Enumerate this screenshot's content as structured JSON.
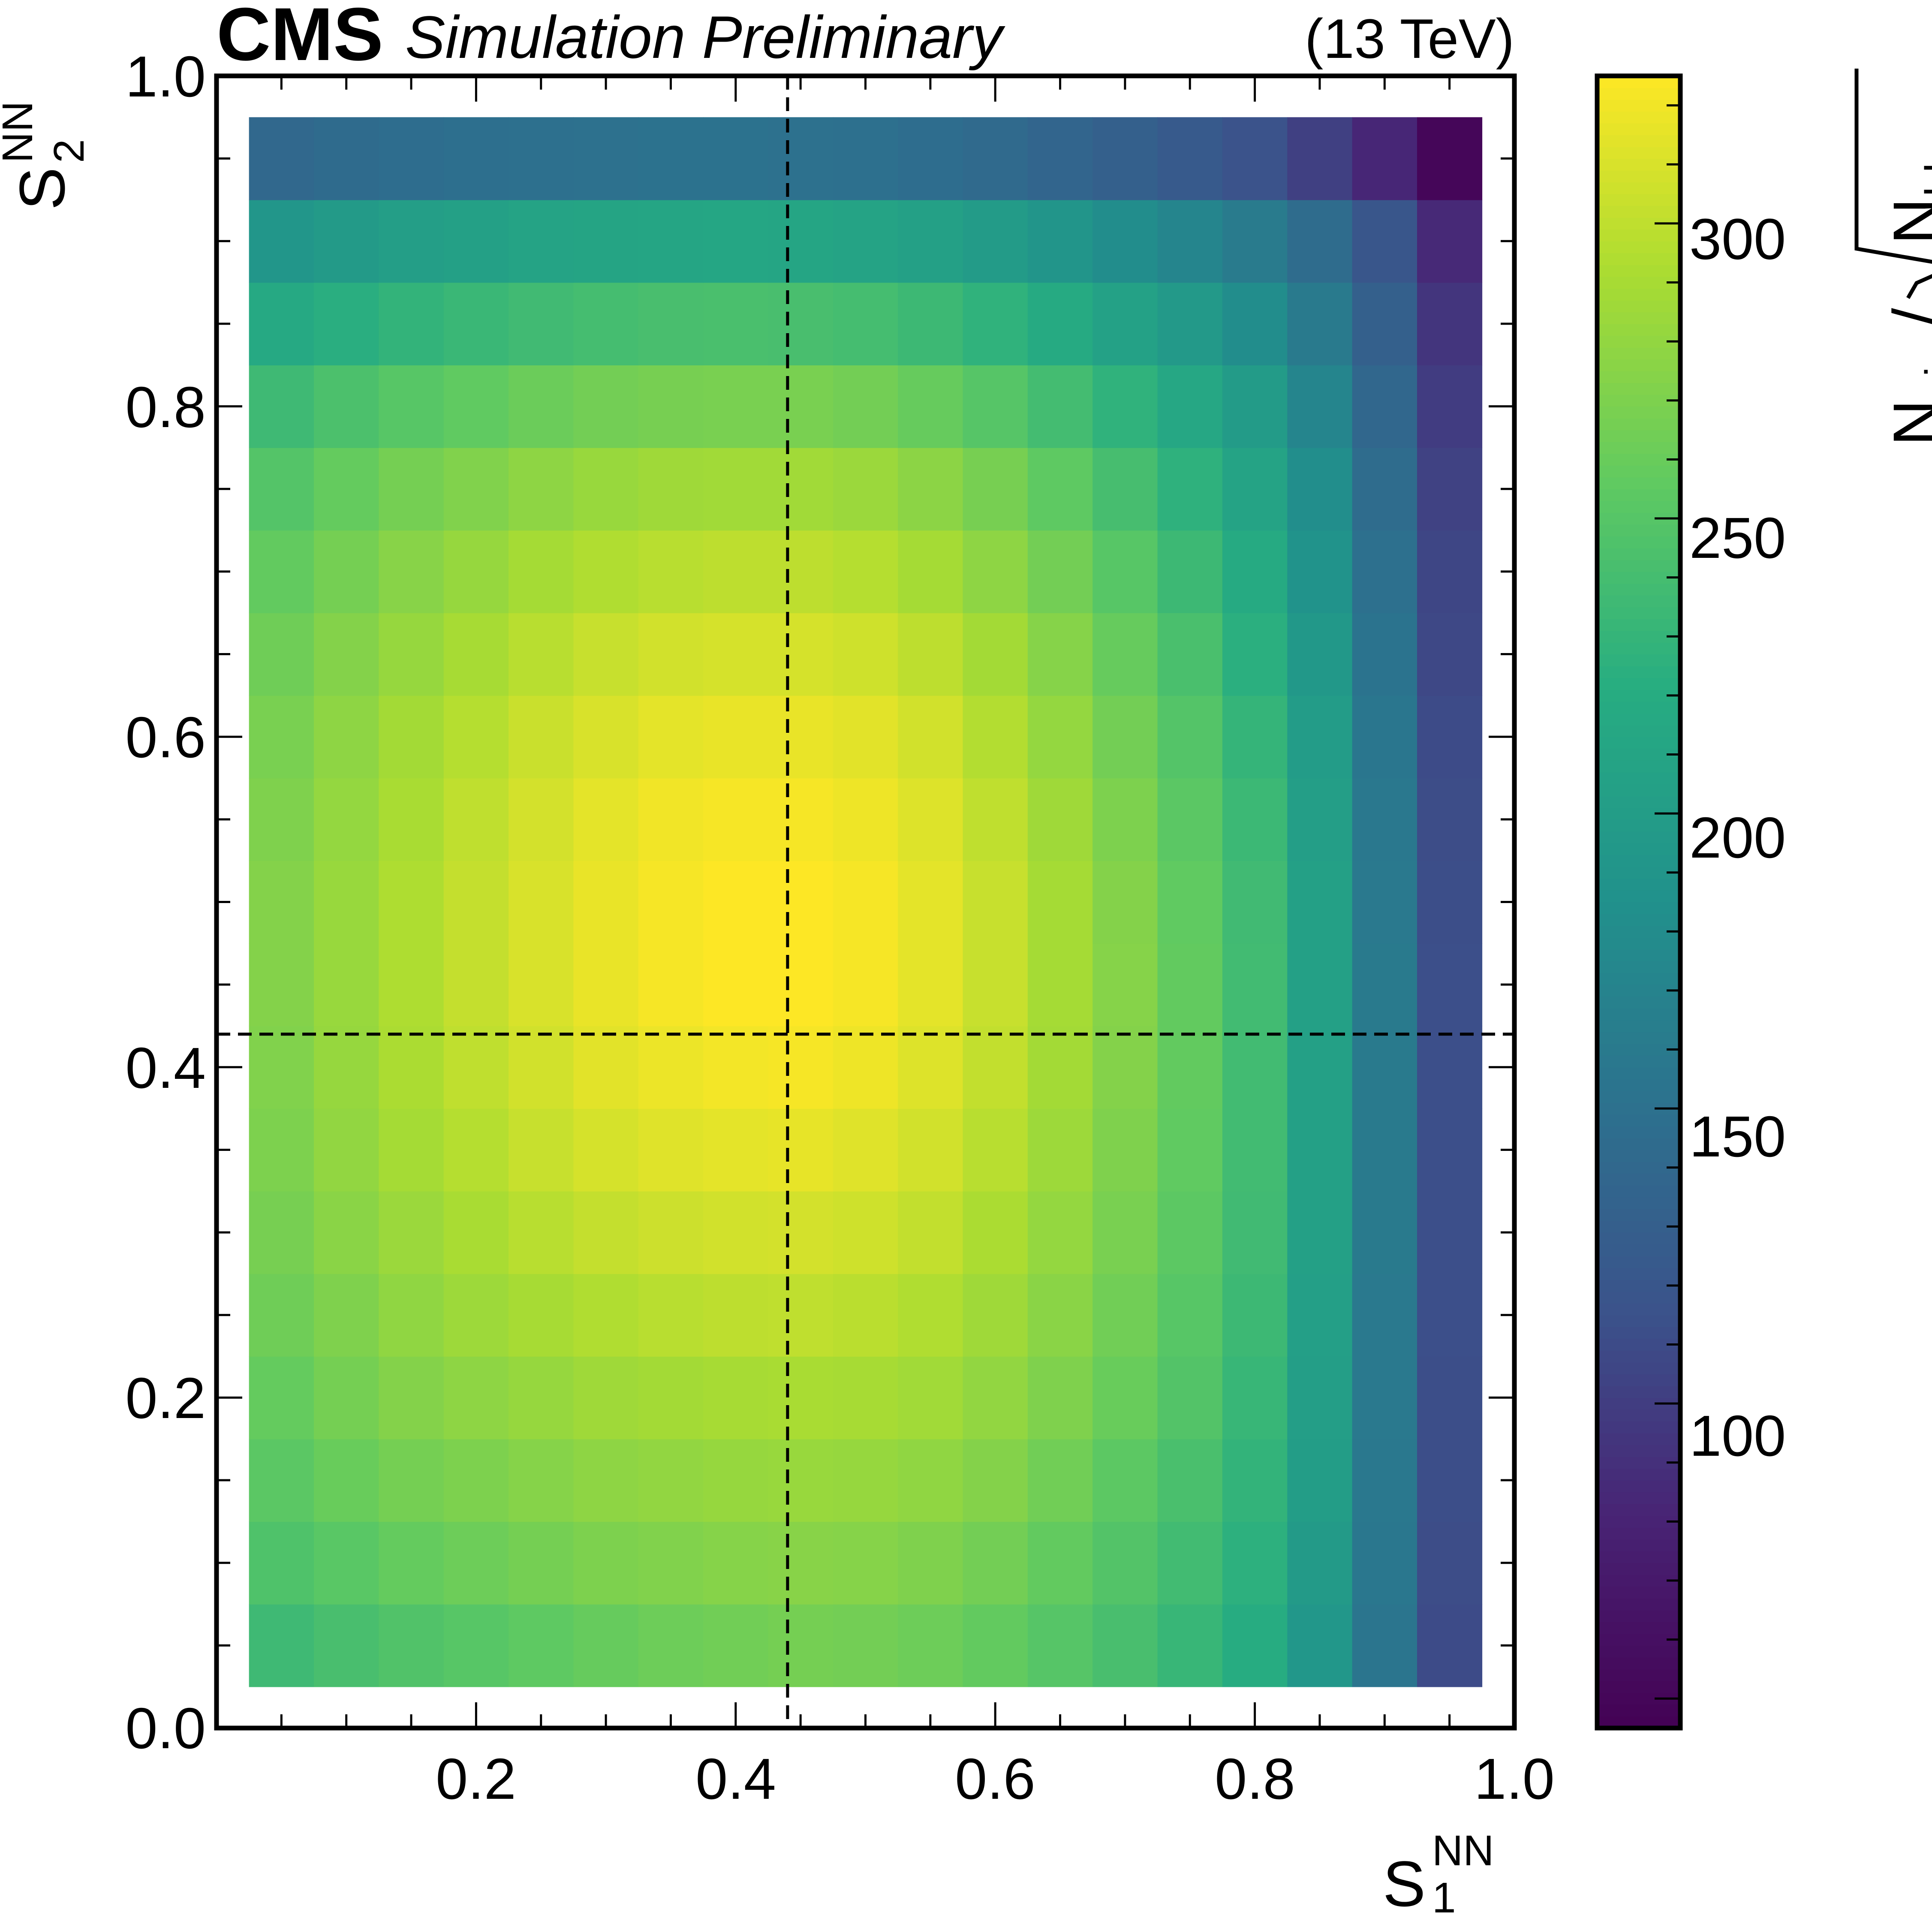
{
  "header": {
    "experiment": "CMS",
    "status": "Simulation Preliminary",
    "energy": "(13 TeV)"
  },
  "chart_data": {
    "type": "heatmap",
    "title": "",
    "xlabel": "S",
    "xlabel_sub": "1",
    "xlabel_sup": "NN",
    "ylabel": "S",
    "ylabel_sub": "2",
    "ylabel_sup": "NN",
    "colorbar_label": {
      "main": "N",
      "main_sub": "sig",
      "slash": "/",
      "denominator": "N",
      "denominator_sub": "bkg"
    },
    "xlim": [
      0.0,
      1.0
    ],
    "ylim": [
      0.0,
      1.0
    ],
    "zlim": [
      45,
      325
    ],
    "x_ticks": [
      "0.2",
      "0.4",
      "0.6",
      "0.8",
      "1.0"
    ],
    "y_ticks": [
      "0.0",
      "0.2",
      "0.4",
      "0.6",
      "0.8",
      "1.0"
    ],
    "colorbar_ticks": [
      "100",
      "150",
      "200",
      "250",
      "300"
    ],
    "x_centers": [
      0.05,
      0.1,
      0.15,
      0.2,
      0.25,
      0.3,
      0.35,
      0.4,
      0.45,
      0.5,
      0.55,
      0.6,
      0.65,
      0.7,
      0.75,
      0.8,
      0.85,
      0.9,
      0.95
    ],
    "y_centers": [
      0.05,
      0.1,
      0.15,
      0.2,
      0.25,
      0.3,
      0.35,
      0.4,
      0.45,
      0.5,
      0.55,
      0.6,
      0.65,
      0.7,
      0.75,
      0.8,
      0.85,
      0.9,
      0.95
    ],
    "bin_width": 0.05,
    "values": [
      [
        236,
        242,
        247,
        251,
        255,
        259,
        262,
        264,
        266,
        265,
        262,
        257,
        250,
        242,
        232,
        220,
        193,
        155,
        110
      ],
      [
        246,
        252,
        258,
        262,
        266,
        270,
        272,
        274,
        275,
        274,
        271,
        265,
        257,
        248,
        238,
        225,
        197,
        157,
        111
      ],
      [
        253,
        260,
        266,
        270,
        274,
        278,
        280,
        282,
        283,
        282,
        279,
        273,
        264,
        254,
        243,
        229,
        200,
        158,
        112
      ],
      [
        258,
        266,
        273,
        278,
        282,
        286,
        288,
        290,
        291,
        290,
        287,
        280,
        271,
        260,
        248,
        232,
        202,
        159,
        112
      ],
      [
        263,
        271,
        279,
        285,
        290,
        294,
        297,
        299,
        300,
        298,
        294,
        286,
        276,
        264,
        251,
        235,
        203,
        159,
        113
      ],
      [
        267,
        276,
        284,
        291,
        297,
        302,
        305,
        307,
        308,
        306,
        301,
        292,
        281,
        268,
        254,
        237,
        204,
        160,
        113
      ],
      [
        270,
        280,
        289,
        296,
        303,
        309,
        313,
        315,
        316,
        313,
        307,
        297,
        285,
        271,
        256,
        238,
        205,
        160,
        113
      ],
      [
        272,
        282,
        292,
        300,
        307,
        314,
        318,
        321,
        322,
        319,
        312,
        301,
        288,
        273,
        257,
        238,
        205,
        160,
        113
      ],
      [
        273,
        283,
        293,
        302,
        310,
        317,
        322,
        325,
        325,
        322,
        315,
        303,
        289,
        274,
        257,
        238,
        205,
        160,
        113
      ],
      [
        273,
        283,
        293,
        302,
        310,
        317,
        322,
        325,
        325,
        322,
        315,
        303,
        289,
        273,
        256,
        237,
        204,
        159,
        112
      ],
      [
        271,
        281,
        291,
        300,
        308,
        315,
        320,
        322,
        322,
        319,
        312,
        300,
        286,
        270,
        253,
        234,
        202,
        158,
        111
      ],
      [
        268,
        278,
        288,
        296,
        304,
        310,
        315,
        317,
        317,
        314,
        307,
        295,
        281,
        265,
        249,
        230,
        199,
        156,
        110
      ],
      [
        263,
        273,
        282,
        290,
        297,
        303,
        307,
        309,
        309,
        306,
        299,
        288,
        274,
        259,
        243,
        224,
        194,
        153,
        108
      ],
      [
        257,
        266,
        275,
        282,
        289,
        294,
        297,
        299,
        299,
        296,
        289,
        278,
        265,
        251,
        235,
        217,
        188,
        149,
        106
      ],
      [
        249,
        258,
        266,
        272,
        278,
        283,
        286,
        287,
        287,
        284,
        277,
        267,
        255,
        241,
        226,
        209,
        182,
        145,
        103
      ],
      [
        236,
        244,
        251,
        256,
        261,
        265,
        267,
        268,
        268,
        265,
        259,
        250,
        239,
        227,
        213,
        198,
        172,
        139,
        99
      ],
      [
        216,
        223,
        229,
        233,
        237,
        240,
        242,
        243,
        242,
        240,
        235,
        227,
        217,
        206,
        195,
        181,
        160,
        131,
        94
      ],
      [
        191,
        197,
        202,
        205,
        208,
        210,
        211,
        212,
        211,
        209,
        205,
        198,
        190,
        181,
        172,
        161,
        145,
        120,
        85
      ],
      [
        140,
        143,
        146,
        148,
        149,
        150,
        151,
        151,
        150,
        149,
        146,
        142,
        137,
        131,
        124,
        116,
        102,
        83,
        50
      ]
    ],
    "annotations": [
      {
        "type": "vline",
        "x": 0.44,
        "style": "dashed"
      },
      {
        "type": "hline",
        "y": 0.42,
        "style": "dashed"
      }
    ],
    "colormap": "viridis"
  }
}
